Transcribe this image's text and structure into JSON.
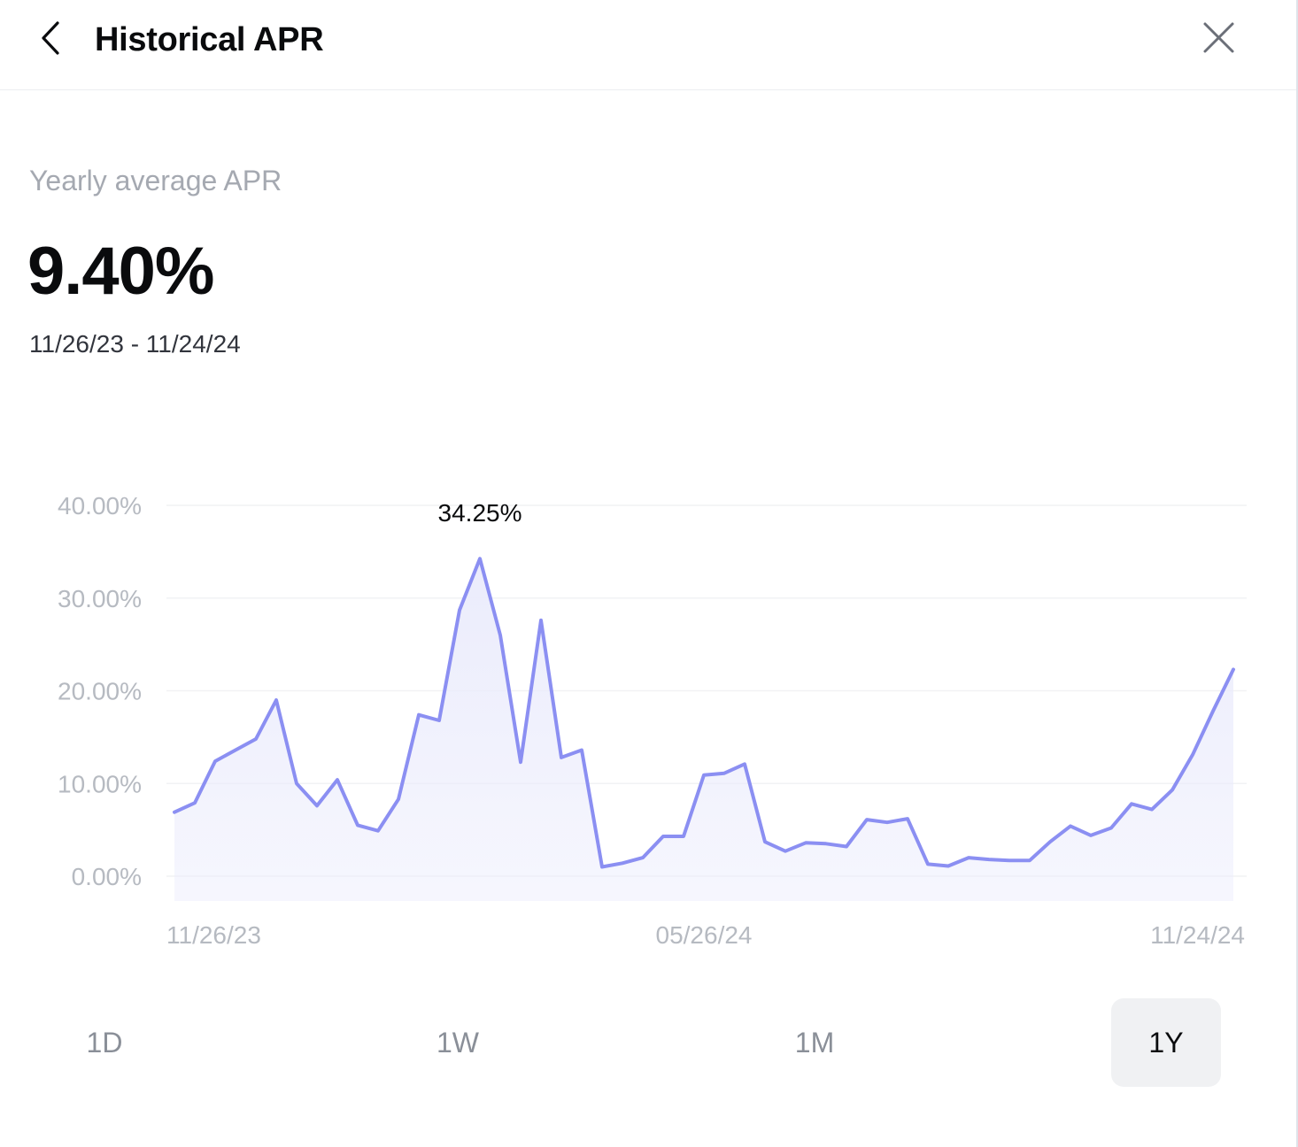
{
  "header": {
    "title": "Historical APR",
    "back_icon": "chevron-left-icon",
    "close_icon": "close-icon"
  },
  "summary": {
    "label": "Yearly average APR",
    "value": "9.40%",
    "date_range": "11/26/23 - 11/24/24"
  },
  "chart_data": {
    "type": "area",
    "y_ticks": [
      "40.00%",
      "30.00%",
      "20.00%",
      "10.00%",
      "0.00%"
    ],
    "ylim": [
      0,
      40
    ],
    "x_ticks": [
      "11/26/23",
      "05/26/24",
      "11/24/24"
    ],
    "peak_label": "34.25%",
    "line_color": "#8b8ff2",
    "fill_color": "#ebecfc",
    "grid": true,
    "series": [
      {
        "values": [
          6.9,
          7.9,
          12.4,
          13.6,
          14.8,
          19.0,
          10.0,
          7.6,
          10.4,
          5.5,
          4.9,
          8.3,
          17.4,
          16.8,
          28.7,
          34.25,
          26.0,
          12.3,
          27.6,
          12.8,
          13.6,
          1.0,
          1.4,
          2.0,
          4.3,
          4.3,
          10.9,
          11.1,
          12.1,
          3.7,
          2.7,
          3.6,
          3.5,
          3.2,
          6.1,
          5.8,
          6.2,
          1.3,
          1.1,
          2.0,
          1.8,
          1.7,
          1.7,
          3.7,
          5.4,
          4.4,
          5.2,
          7.8,
          7.2,
          9.3,
          13.1,
          17.8,
          22.3
        ]
      }
    ]
  },
  "range_tabs": [
    {
      "label": "1D",
      "active": false
    },
    {
      "label": "1W",
      "active": false
    },
    {
      "label": "1M",
      "active": false
    },
    {
      "label": "1Y",
      "active": true
    }
  ]
}
